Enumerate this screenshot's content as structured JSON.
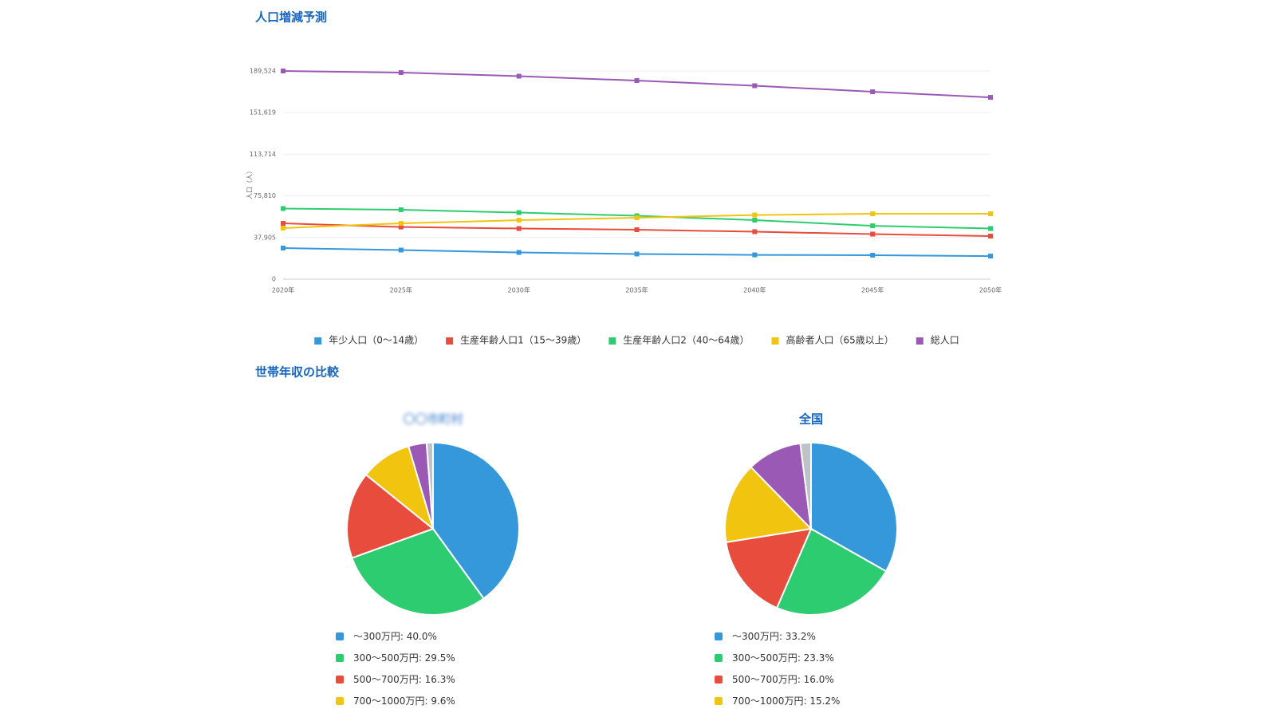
{
  "section_title": "世帯年収の比較",
  "chart_data": [
    {
      "type": "line",
      "title": "人口増減予測",
      "y_label": "人口（人）",
      "categories": [
        "2020年",
        "2025年",
        "2030年",
        "2035年",
        "2040年",
        "2045年",
        "2050年"
      ],
      "ylim": [
        0,
        189524
      ],
      "yticks": [
        0,
        {
          "value": 37905,
          "label": "37,905"
        },
        {
          "value": 75810,
          "label": "75,810"
        },
        {
          "value": 113714,
          "label": "113,714"
        },
        {
          "value": 151619,
          "label": "151,619"
        },
        {
          "value": 189524,
          "label": "189,524"
        }
      ],
      "grid": true,
      "series": [
        {
          "name": "年少人口（0～14歳）",
          "color": "#3498db",
          "values": [
            28300,
            26500,
            24300,
            22900,
            22100,
            21800,
            21000
          ]
        },
        {
          "name": "生産年齢人口1（15～39歳）",
          "color": "#e74c3c",
          "values": [
            50800,
            47500,
            46100,
            45000,
            43200,
            41000,
            39200
          ]
        },
        {
          "name": "生産年齢人口2（40～64歳）",
          "color": "#2ecc71",
          "values": [
            64300,
            63200,
            60600,
            57700,
            53700,
            48600,
            46100
          ]
        },
        {
          "name": "高齢者人口（65歳以上）",
          "color": "#f1c40f",
          "values": [
            46500,
            50800,
            53700,
            55900,
            58400,
            59500,
            59500
          ]
        },
        {
          "name": "総人口",
          "color": "#9b59b6",
          "values": [
            189524,
            188072,
            184800,
            180800,
            176100,
            170600,
            165500
          ]
        }
      ]
    },
    {
      "type": "pie",
      "title": "〇〇市町村",
      "categories": [
        "～300万円",
        "300～500万円",
        "500～700万円",
        "700～1000万円",
        null,
        null
      ],
      "values": [
        40.0,
        29.5,
        16.3,
        9.6,
        3.4,
        1.2
      ],
      "value_labels": [
        "40.0%",
        "29.5%",
        "16.3%",
        "9.6%",
        null,
        null
      ],
      "colors": [
        "#3498db",
        "#2ecc71",
        "#e74c3c",
        "#f1c40f",
        "#9b59b6",
        "#bdc3c7"
      ]
    },
    {
      "type": "pie",
      "title": "全国",
      "categories": [
        "～300万円",
        "300～500万円",
        "500～700万円",
        "700～1000万円",
        null,
        null
      ],
      "values": [
        33.2,
        23.3,
        16.0,
        15.2,
        10.3,
        2.0
      ],
      "value_labels": [
        "33.2%",
        "23.3%",
        "16.0%",
        "15.2%",
        null,
        null
      ],
      "colors": [
        "#3498db",
        "#2ecc71",
        "#e74c3c",
        "#f1c40f",
        "#9b59b6",
        "#bdc3c7"
      ]
    }
  ]
}
